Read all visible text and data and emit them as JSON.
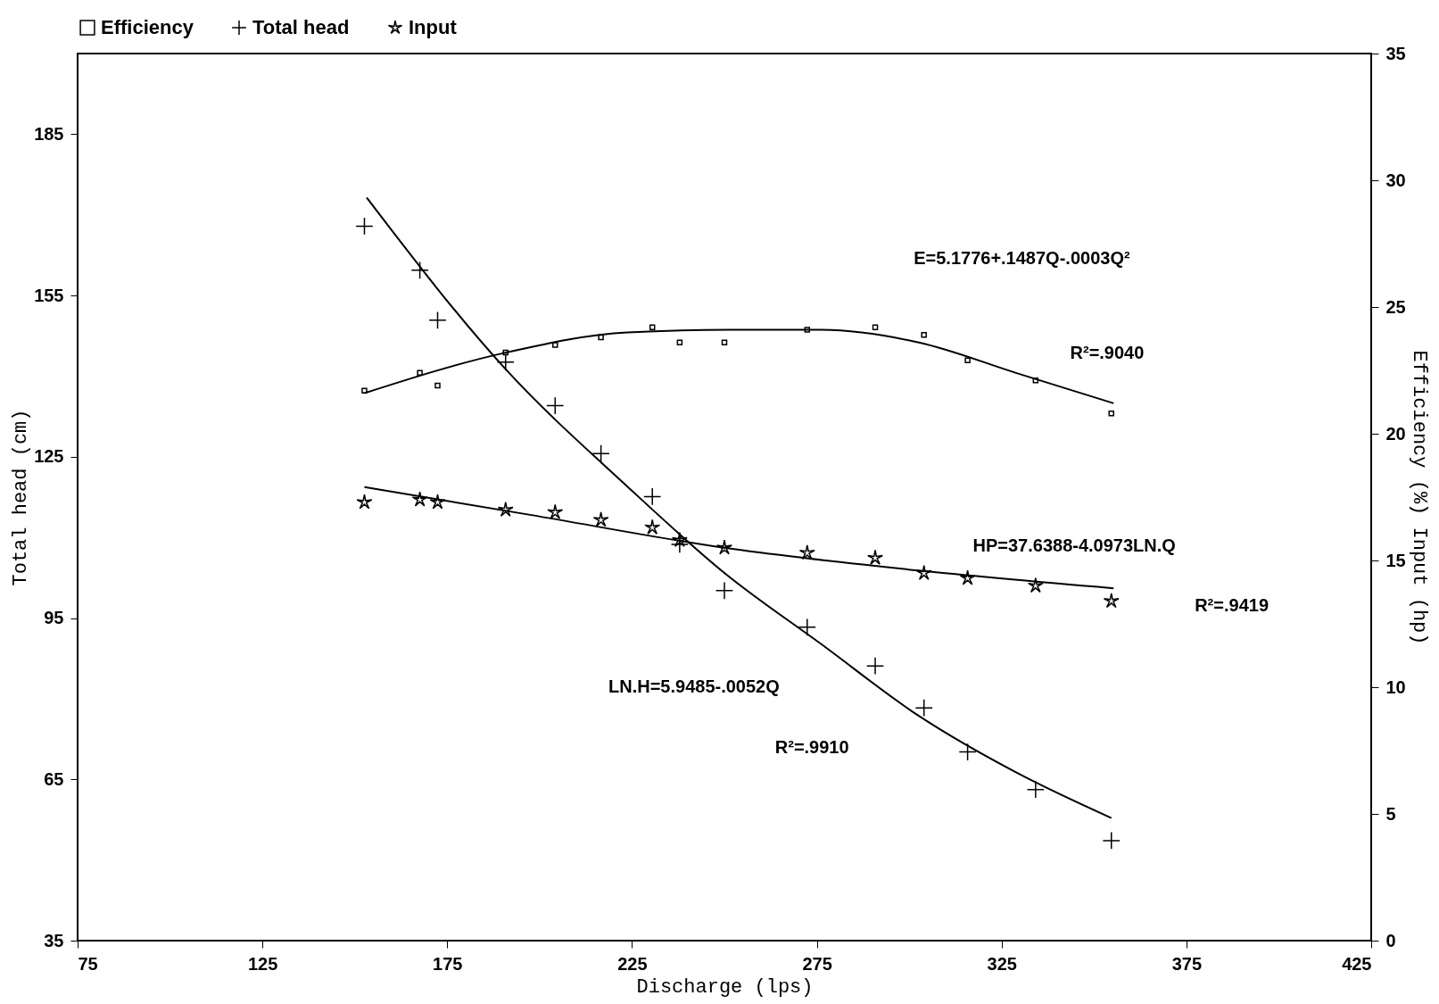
{
  "chart_data": {
    "type": "scatter",
    "xlabel": "Discharge (lps)",
    "ylabel": "Total head (cm)",
    "y2label": "Efficiency (%) Input (hp)",
    "xlim": [
      75,
      425
    ],
    "xticks": [
      75,
      125,
      175,
      225,
      275,
      325,
      375,
      425
    ],
    "ylim": [
      35,
      200
    ],
    "yticks": [
      35,
      65,
      95,
      125,
      155,
      185
    ],
    "y2lim": [
      0,
      35
    ],
    "y2ticks": [
      0,
      5,
      10,
      15,
      20,
      25,
      30,
      35
    ],
    "legend": "top",
    "series": [
      {
        "name": "Efficiency",
        "marker": "square",
        "axis": "y2",
        "color": "#000000",
        "x": [
          152.6,
          167.6,
          172.4,
          190.8,
          204.2,
          216.6,
          230.5,
          237.9,
          250,
          272.4,
          290.8,
          304,
          315.8,
          334.2,
          354.7
        ],
        "values": [
          21.7,
          22.4,
          21.9,
          23.2,
          23.5,
          23.8,
          24.2,
          23.6,
          23.6,
          24.1,
          24.2,
          23.9,
          22.9,
          22.1,
          20.8
        ]
      },
      {
        "name": "Total head",
        "marker": "cross",
        "color": "#000000",
        "x": [
          152.6,
          167.6,
          172.4,
          190.8,
          204.2,
          216.6,
          230.5,
          237.9,
          250,
          272.4,
          290.8,
          304,
          315.8,
          334.2,
          354.7
        ],
        "values": [
          167.9,
          159.7,
          150.4,
          142.6,
          134.5,
          125.6,
          117.6,
          108.7,
          100.1,
          93.3,
          86.1,
          78.3,
          70.1,
          63.1,
          53.6
        ]
      },
      {
        "name": "Input",
        "marker": "star",
        "axis": "y2",
        "color": "#000000",
        "x": [
          152.6,
          167.6,
          172.4,
          190.8,
          204.2,
          216.6,
          230.5,
          237.9,
          250,
          272.4,
          290.8,
          304,
          315.8,
          334.2,
          354.7
        ],
        "values": [
          17.3,
          17.4,
          17.3,
          17.0,
          16.9,
          16.6,
          16.3,
          15.8,
          15.5,
          15.3,
          15.1,
          14.5,
          14.3,
          14.0,
          13.4
        ]
      },
      {
        "type": "line",
        "axis": "y2",
        "color": "#000000",
        "x": [
          152.6,
          190.8,
          223.7,
          251.3,
          276.3,
          302.6,
          328.9,
          355.3
        ],
        "values": [
          21.6,
          23.2,
          24.0,
          24.1,
          24.1,
          23.6,
          22.4,
          21.2
        ]
      },
      {
        "type": "line",
        "color": "#000000",
        "x": [
          153.2,
          190.8,
          223.7,
          250,
          276.3,
          302.6,
          328.9,
          354.7
        ],
        "values": [
          173.2,
          141.3,
          119.5,
          103.4,
          90.1,
          76.8,
          66.3,
          57.8
        ]
      },
      {
        "type": "line",
        "axis": "y2",
        "color": "#000000",
        "x": [
          152.6,
          197.4,
          250,
          302.6,
          355.3
        ],
        "values": [
          17.9,
          16.8,
          15.5,
          14.6,
          13.9
        ]
      }
    ],
    "annotations": [
      "E=5.1776+.1487Q-.0003Q²",
      "R²=.9040",
      "HP=37.6388-4.0973LN.Q",
      "R²=.9419",
      "LN.H=5.9485-.0052Q",
      "R²=.9910"
    ]
  }
}
